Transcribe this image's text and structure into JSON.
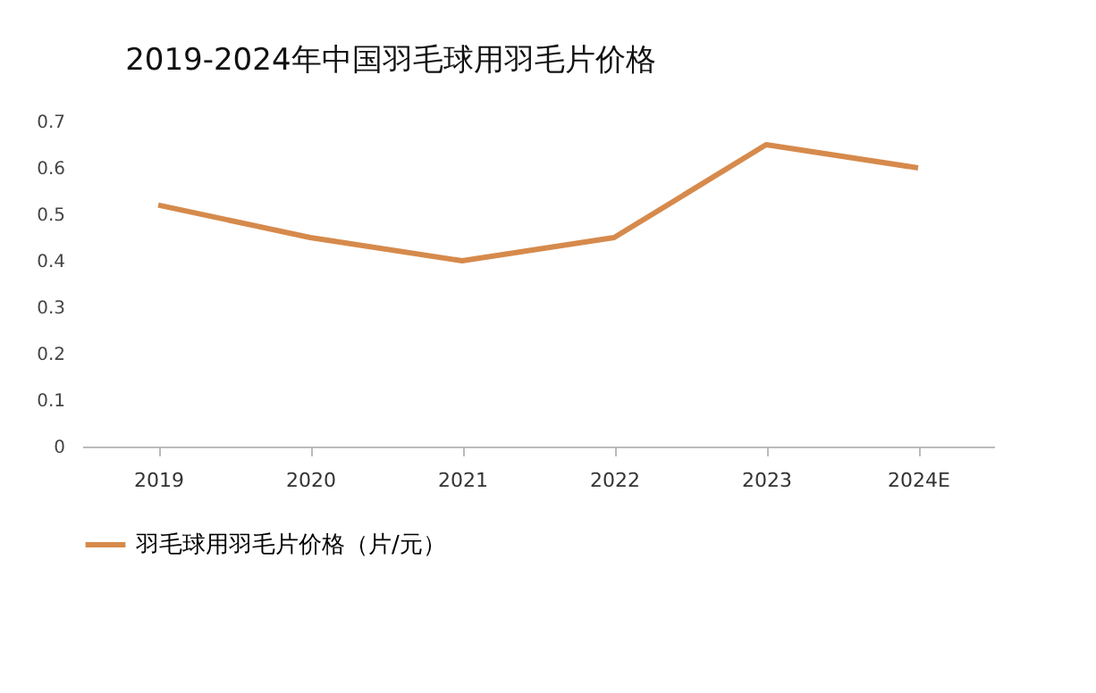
{
  "chart_data": {
    "type": "line",
    "title": "2019-2024年中国羽毛球用羽毛片价格",
    "categories": [
      "2019",
      "2020",
      "2021",
      "2022",
      "2023",
      "2024E"
    ],
    "series": [
      {
        "name": "羽毛球用羽毛片价格（片/元）",
        "color": "#d68a4c",
        "values": [
          0.52,
          0.45,
          0.4,
          0.45,
          0.65,
          0.6
        ]
      }
    ],
    "ylim": [
      0,
      0.7
    ],
    "yticks": [
      0,
      0.1,
      0.2,
      0.3,
      0.4,
      0.5,
      0.6,
      0.7
    ],
    "grid": false,
    "legend": "bottom",
    "marker": "none",
    "line_style": "solid"
  }
}
